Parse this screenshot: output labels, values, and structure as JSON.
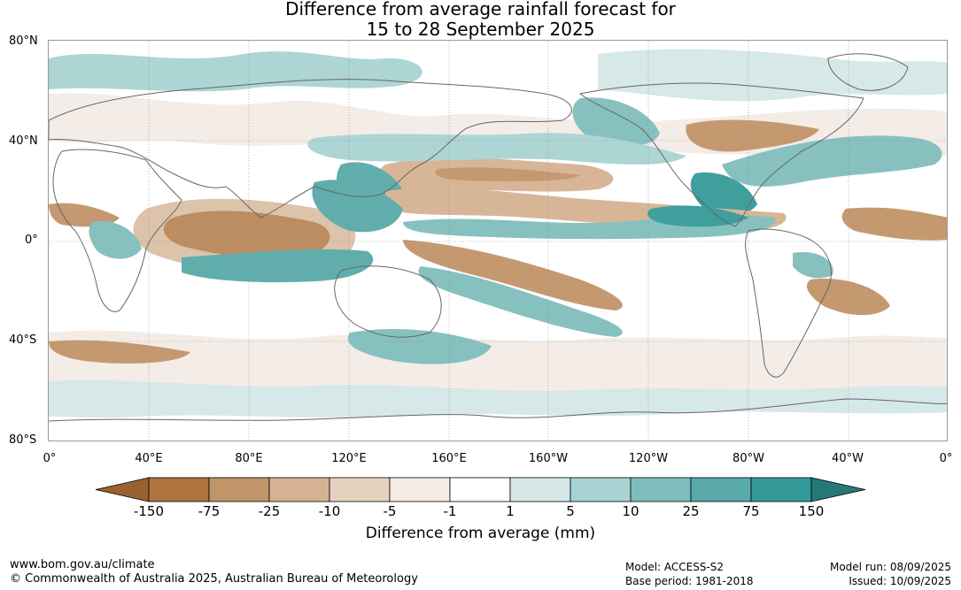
{
  "title": {
    "line1": "Difference from average rainfall forecast for",
    "line2": "15 to 28 September 2025"
  },
  "axes": {
    "lat_labels": [
      "80°N",
      "40°N",
      "0°",
      "40°S",
      "80°S"
    ],
    "lon_labels": [
      "0°",
      "40°E",
      "80°E",
      "120°E",
      "160°E",
      "160°W",
      "120°W",
      "80°W",
      "40°W",
      "0°"
    ]
  },
  "colorbar": {
    "title": "Difference from average (mm)",
    "tick_labels": [
      "-150",
      "-75",
      "-25",
      "-10",
      "-5",
      "-1",
      "1",
      "5",
      "10",
      "25",
      "75",
      "150"
    ],
    "colors": [
      "#9a6230",
      "#ad7440",
      "#c29469",
      "#d5b392",
      "#e5d2c0",
      "#f4ece5",
      "#ffffff",
      "#d4e7e6",
      "#a9d3d2",
      "#80bebd",
      "#58a9a8",
      "#349a98",
      "#257a78"
    ]
  },
  "colors": {
    "dry_strong": "#ad7440",
    "dry_moderate": "#c29469",
    "dry_light": "#e5d2c0",
    "wet_light": "#d4e7e6",
    "wet_moderate": "#80bebd",
    "wet_strong": "#349a98",
    "land_outline": "#666666",
    "grid": "#888888"
  },
  "footer": {
    "url": "www.bom.gov.au/climate",
    "copyright": "© Commonwealth of Australia 2025, Australian Bureau of Meteorology",
    "model": "Model: ACCESS-S2",
    "base_period": "Base period: 1981-2018",
    "model_run": "Model run: 08/09/2025",
    "issued": "Issued: 10/09/2025"
  }
}
